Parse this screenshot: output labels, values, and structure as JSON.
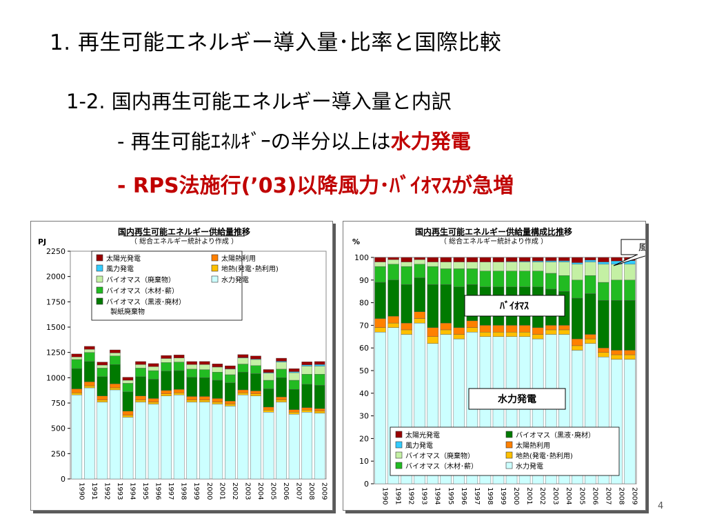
{
  "slide": {
    "title": "1. 再生可能エネルギー導入量･比率と国際比較",
    "subtitle": "1-2. 国内再生可能エネルギー導入量と内訳",
    "bullet1_prefix": "- 再生可能ｴﾈﾙｷﾞｰの半分以上は",
    "bullet1_highlight": "水力発電",
    "bullet2": "- RPS法施行(’03)以降風力･ﾊﾞｲｵﾏｽが急増",
    "page_number": "4"
  },
  "chart_data": [
    {
      "type": "bar",
      "stacked": true,
      "title": "国内再生可能エネルギー供給量推移",
      "subtitle": "（ 総合エネルギー統計より作成 ）",
      "ylabel": "PJ",
      "ylim": [
        0,
        2250
      ],
      "yticks": [
        "0",
        "250",
        "500",
        "750",
        "1000",
        "1250",
        "1500",
        "1750",
        "2000",
        "2250"
      ],
      "categories": [
        "1990",
        "1991",
        "1992",
        "1993",
        "1994",
        "1995",
        "1996",
        "1997",
        "1998",
        "1999",
        "2000",
        "2001",
        "2002",
        "2003",
        "2004",
        "2005",
        "2006",
        "2007",
        "2008",
        "2009"
      ],
      "legend": [
        "太陽光発電",
        "太陽熱利用",
        "風力発電",
        "地熱(発電･熱利用)",
        "バイオマス（廃棄物）",
        "水力発電",
        "バイオマス（木材･薪）",
        "バイオマス（黒液･廃材）",
        "製紙廃棄物"
      ],
      "series": [
        {
          "name": "水力発電",
          "color": "#ccffff",
          "values": [
            830,
            900,
            760,
            880,
            610,
            760,
            740,
            820,
            830,
            760,
            760,
            740,
            720,
            830,
            820,
            660,
            760,
            640,
            660,
            650
          ]
        },
        {
          "name": "地熱(発電･熱利用)",
          "color": "#ffc000",
          "values": [
            20,
            20,
            20,
            20,
            20,
            20,
            20,
            20,
            20,
            20,
            20,
            20,
            20,
            20,
            20,
            20,
            20,
            20,
            20,
            20
          ]
        },
        {
          "name": "太陽熱利用",
          "color": "#ff8000",
          "values": [
            40,
            40,
            40,
            40,
            40,
            40,
            35,
            35,
            35,
            35,
            35,
            35,
            30,
            30,
            30,
            30,
            30,
            25,
            25,
            25
          ]
        },
        {
          "name": "バイオマス（黒液･廃材）",
          "color": "#007a00",
          "values": [
            200,
            200,
            190,
            190,
            190,
            190,
            190,
            190,
            185,
            190,
            185,
            180,
            180,
            175,
            170,
            180,
            190,
            200,
            230,
            230
          ]
        },
        {
          "name": "バイオマス（木材･薪）",
          "color": "#22bb22",
          "values": [
            90,
            90,
            85,
            85,
            85,
            85,
            85,
            85,
            85,
            80,
            80,
            80,
            80,
            80,
            80,
            85,
            85,
            90,
            100,
            110
          ]
        },
        {
          "name": "バイオマス（廃棄物）",
          "color": "#c4f0a4",
          "values": [
            25,
            30,
            30,
            30,
            30,
            35,
            40,
            40,
            40,
            45,
            50,
            50,
            55,
            60,
            60,
            70,
            70,
            75,
            80,
            80
          ]
        },
        {
          "name": "風力発電",
          "color": "#33ccff",
          "values": [
            0,
            0,
            0,
            0,
            0,
            0,
            0,
            0,
            0,
            0,
            1,
            2,
            3,
            4,
            5,
            6,
            8,
            10,
            12,
            15
          ]
        },
        {
          "name": "太陽光発電",
          "color": "#990000",
          "values": [
            30,
            30,
            30,
            30,
            30,
            30,
            30,
            30,
            30,
            30,
            30,
            30,
            30,
            30,
            30,
            30,
            30,
            30,
            30,
            30
          ]
        }
      ]
    },
    {
      "type": "bar",
      "stacked": true,
      "title": "国内再生可能エネルギー供給量構成比推移",
      "subtitle": "（ 総合エネルギー統計より作成 ）",
      "ylabel": "%",
      "ylim": [
        0,
        100
      ],
      "yticks": [
        "0",
        "10",
        "20",
        "30",
        "40",
        "50",
        "60",
        "70",
        "80",
        "90",
        "100"
      ],
      "categories": [
        "1990",
        "1991",
        "1992",
        "1993",
        "1994",
        "1995",
        "1996",
        "1997",
        "1998",
        "1999",
        "2000",
        "2001",
        "2002",
        "2003",
        "2004",
        "2005",
        "2006",
        "2007",
        "2008",
        "2009"
      ],
      "legend": [
        "太陽光発電",
        "バイオマス（黒液･廃材）",
        "風力発電",
        "太陽熱利用",
        "バイオマス（廃棄物）",
        "地熱(発電･熱利用)",
        "バイオマス（木材･薪）",
        "水力発電"
      ],
      "annotations": [
        "風力発電",
        "ﾊﾞｲｵﾏｽ",
        "水力発電"
      ],
      "series": [
        {
          "name": "水力発電",
          "color": "#ccffff",
          "values": [
            67,
            69,
            66,
            71,
            62,
            66,
            64,
            67,
            65,
            65,
            65,
            65,
            64,
            66,
            66,
            59,
            62,
            56,
            55,
            55
          ]
        },
        {
          "name": "地熱(発電･熱利用)",
          "color": "#ffc000",
          "values": [
            2,
            2,
            2,
            2,
            3,
            2,
            2,
            2,
            2,
            2,
            2,
            2,
            2,
            2,
            2,
            2,
            2,
            2,
            2,
            2
          ]
        },
        {
          "name": "太陽熱利用",
          "color": "#ff8000",
          "values": [
            4,
            3,
            3,
            3,
            4,
            3,
            3,
            3,
            3,
            3,
            3,
            3,
            3,
            2,
            2,
            3,
            2,
            2,
            2,
            2
          ]
        },
        {
          "name": "バイオマス（黒液･廃材）",
          "color": "#007a00",
          "values": [
            16,
            16,
            17,
            15,
            19,
            17,
            18,
            16,
            17,
            17,
            17,
            17,
            18,
            16,
            15,
            18,
            18,
            21,
            22,
            22
          ]
        },
        {
          "name": "バイオマス（木材･薪）",
          "color": "#22bb22",
          "values": [
            7,
            7,
            8,
            6,
            8,
            7,
            8,
            7,
            7,
            7,
            7,
            7,
            7,
            7,
            7,
            8,
            8,
            8,
            9,
            9
          ]
        },
        {
          "name": "バイオマス（廃棄物）",
          "color": "#c4f0a4",
          "values": [
            2,
            2,
            2,
            2,
            2,
            3,
            3,
            3,
            4,
            4,
            4,
            4,
            4,
            5,
            6,
            7,
            6,
            8,
            7,
            7
          ]
        },
        {
          "name": "風力発電",
          "color": "#33ccff",
          "values": [
            0,
            0,
            0,
            0,
            0,
            0,
            0,
            0,
            0,
            0,
            0.2,
            0.3,
            0.4,
            0.5,
            0.5,
            0.7,
            0.8,
            1.0,
            1.4,
            1.6
          ]
        },
        {
          "name": "太陽光発電",
          "color": "#990000",
          "values": [
            2,
            1,
            2,
            1,
            2,
            2,
            2,
            2,
            2,
            2,
            1.8,
            1.7,
            1.6,
            1.5,
            1.5,
            2.3,
            1.2,
            2,
            1.6,
            1.4
          ]
        }
      ]
    }
  ]
}
